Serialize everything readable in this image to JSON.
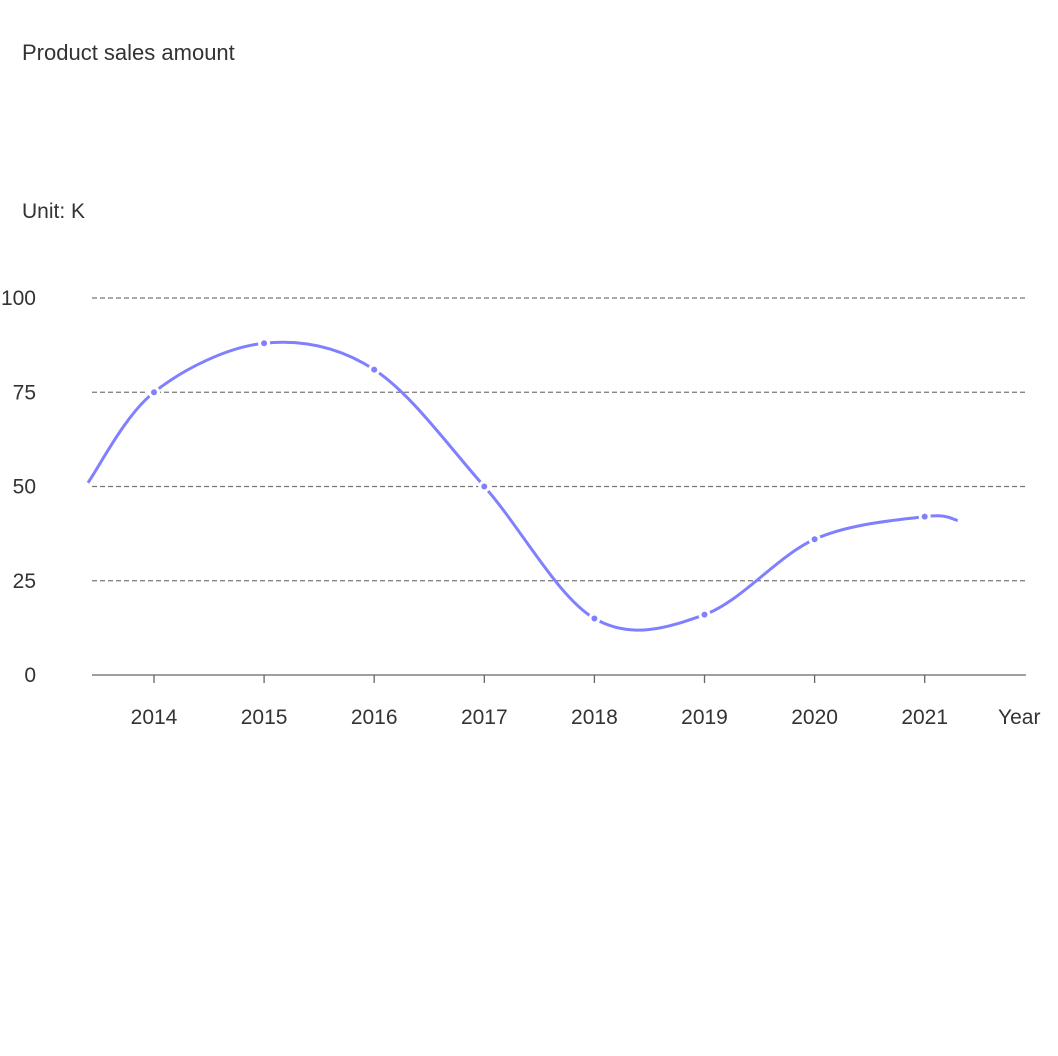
{
  "chart_data": {
    "type": "line",
    "title": "Product sales amount",
    "ylabel": "Unit: K",
    "xlabel": "Year",
    "ylim": [
      0,
      100
    ],
    "yticks": [
      0,
      25,
      50,
      75,
      100
    ],
    "categories": [
      "2014",
      "2015",
      "2016",
      "2017",
      "2018",
      "2019",
      "2020",
      "2021"
    ],
    "grid": true,
    "smooth": true,
    "color": "#8080ff",
    "series": [
      {
        "name": "Product sales amount",
        "x": [
          2014,
          2015,
          2016,
          2017,
          2018,
          2019,
          2020,
          2021
        ],
        "values": [
          75,
          88,
          81,
          50,
          15,
          16,
          36,
          42
        ]
      }
    ],
    "curve_start": {
      "x": 2013.4,
      "y": 51
    },
    "curve_end": {
      "x": 2021.3,
      "y": 41
    }
  }
}
